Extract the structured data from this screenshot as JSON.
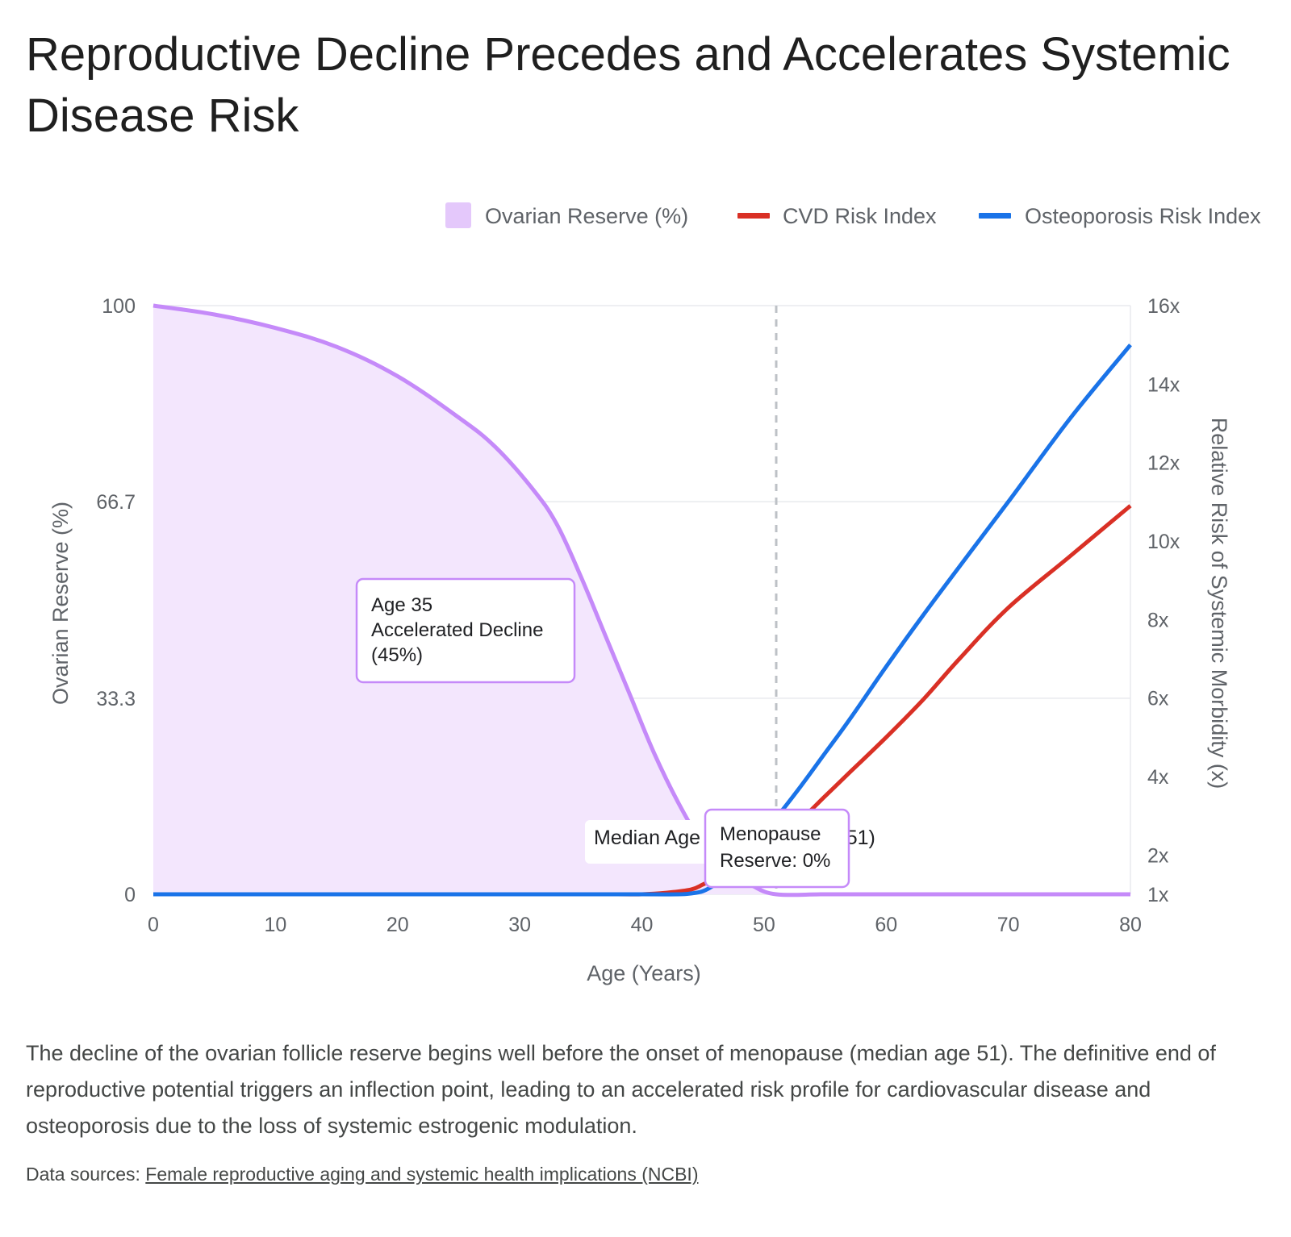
{
  "title": "Reproductive Decline Precedes and Accelerates Systemic Disease Risk",
  "description": "The decline of the ovarian follicle reserve begins well before the onset of menopause (median age 51). The definitive end of reproductive potential triggers an inflection point, leading to an accelerated risk profile for cardiovascular disease and osteoporosis due to the loss of systemic estrogenic modulation.",
  "sources": {
    "label": "Data sources:",
    "link_text": "Female reproductive aging and systemic health implications (NCBI)"
  },
  "colors": {
    "reserve_line": "#c58af9",
    "reserve_fill": "#f3e6fd",
    "cvd": "#d93025",
    "osteo": "#1a73e8",
    "grid": "#e8eaed",
    "axis_text": "#5f6368"
  },
  "chart_data": {
    "type": "line",
    "xlabel": "Age (Years)",
    "ylabel_left": "Ovarian Reserve (%)",
    "ylabel_right": "Relative Risk of Systemic Morbidity (x)",
    "xlim": [
      0,
      80
    ],
    "ylim_left": [
      0,
      100
    ],
    "ylim_right": [
      1,
      16
    ],
    "x_ticks": [
      "0",
      "10",
      "20",
      "30",
      "40",
      "50",
      "60",
      "70",
      "80"
    ],
    "x_tick_values": [
      0,
      10,
      20,
      30,
      40,
      50,
      60,
      70,
      80
    ],
    "y_left_ticks": [
      "0",
      "33.3",
      "66.7",
      "100"
    ],
    "y_left_tick_values": [
      0,
      33.3,
      66.7,
      100
    ],
    "y_right_ticks": [
      "1x",
      "2x",
      "4x",
      "6x",
      "8x",
      "10x",
      "12x",
      "14x",
      "16x"
    ],
    "y_right_tick_values": [
      1,
      2,
      4,
      6,
      8,
      10,
      12,
      14,
      16
    ],
    "grid": true,
    "legend_position": "top-right",
    "series": [
      {
        "name": "Ovarian Reserve (%)",
        "axis": "left",
        "style": "area",
        "points": [
          [
            0,
            100
          ],
          [
            5,
            98.5
          ],
          [
            10,
            96.2
          ],
          [
            15,
            93
          ],
          [
            20,
            88
          ],
          [
            25,
            81
          ],
          [
            28,
            76
          ],
          [
            31,
            69
          ],
          [
            33,
            63
          ],
          [
            35,
            54
          ],
          [
            37,
            44
          ],
          [
            39,
            34
          ],
          [
            41,
            24
          ],
          [
            43,
            15.5
          ],
          [
            45,
            8.5
          ],
          [
            47,
            4
          ],
          [
            49,
            1.5
          ],
          [
            51,
            0
          ],
          [
            55,
            0
          ],
          [
            60,
            0
          ],
          [
            70,
            0
          ],
          [
            80,
            0
          ]
        ]
      },
      {
        "name": "CVD Risk Index",
        "axis": "right",
        "style": "line",
        "points": [
          [
            0,
            1
          ],
          [
            10,
            1
          ],
          [
            20,
            1
          ],
          [
            30,
            1
          ],
          [
            38,
            1
          ],
          [
            40,
            1
          ],
          [
            42,
            1.04
          ],
          [
            44,
            1.12
          ],
          [
            45,
            1.25
          ],
          [
            46,
            1.4
          ],
          [
            47,
            1.6
          ],
          [
            48,
            1.8
          ],
          [
            50,
            2.2
          ],
          [
            51,
            2.45
          ],
          [
            53,
            2.9
          ],
          [
            55,
            3.5
          ],
          [
            57,
            4.1
          ],
          [
            60,
            5.0
          ],
          [
            63,
            5.95
          ],
          [
            66,
            7.0
          ],
          [
            70,
            8.3
          ],
          [
            75,
            9.6
          ],
          [
            80,
            10.9
          ]
        ]
      },
      {
        "name": "Osteoporosis Risk Index",
        "axis": "right",
        "style": "line",
        "points": [
          [
            0,
            1
          ],
          [
            10,
            1
          ],
          [
            20,
            1
          ],
          [
            30,
            1
          ],
          [
            40,
            1
          ],
          [
            43,
            1
          ],
          [
            44,
            1.02
          ],
          [
            45,
            1.08
          ],
          [
            46,
            1.25
          ],
          [
            47,
            1.5
          ],
          [
            48,
            1.9
          ],
          [
            50,
            2.6
          ],
          [
            51,
            2.95
          ],
          [
            53,
            3.75
          ],
          [
            55,
            4.6
          ],
          [
            57,
            5.45
          ],
          [
            60,
            6.8
          ],
          [
            63,
            8.1
          ],
          [
            66,
            9.35
          ],
          [
            70,
            11.0
          ],
          [
            75,
            13.1
          ],
          [
            80,
            15.0
          ]
        ]
      }
    ],
    "annotations": {
      "menopause_line": {
        "x": 51,
        "label": "Median Age of Menopause (51)"
      },
      "callout_35": {
        "x": 35,
        "lines": [
          "Age 35",
          "Accelerated Decline",
          "(45%)"
        ]
      },
      "callout_menopause": {
        "x": 51,
        "lines": [
          "Menopause",
          "Reserve: 0%"
        ]
      }
    }
  }
}
